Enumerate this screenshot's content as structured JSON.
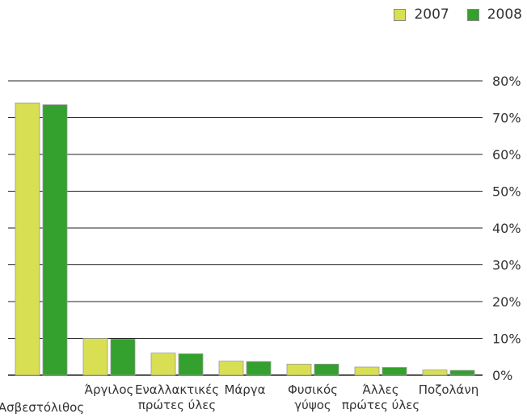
{
  "chart_data": {
    "type": "bar",
    "categories": [
      [
        "Ασβεστόλιθος"
      ],
      [
        "Άργιλος"
      ],
      [
        "Εναλλακτικές",
        "πρώτες ύλες"
      ],
      [
        "Μάργα"
      ],
      [
        "Φυσικός",
        "γύψος"
      ],
      [
        "Άλλες",
        "πρώτες ύλες"
      ],
      [
        "Ποζολάνη"
      ]
    ],
    "series": [
      {
        "name": "2007",
        "color": "#d8df52",
        "values": [
          74,
          10,
          6,
          3.8,
          3,
          2.2,
          1.4
        ]
      },
      {
        "name": "2008",
        "color": "#34a02e",
        "values": [
          73.5,
          9.8,
          5.8,
          3.7,
          3,
          2.1,
          1.3
        ]
      }
    ],
    "yticks": [
      "0%",
      "10%",
      "20%",
      "30%",
      "40%",
      "50%",
      "60%",
      "70%",
      "80%"
    ],
    "ylim": [
      0,
      80
    ],
    "legend_position": "top-right",
    "grid": true
  }
}
